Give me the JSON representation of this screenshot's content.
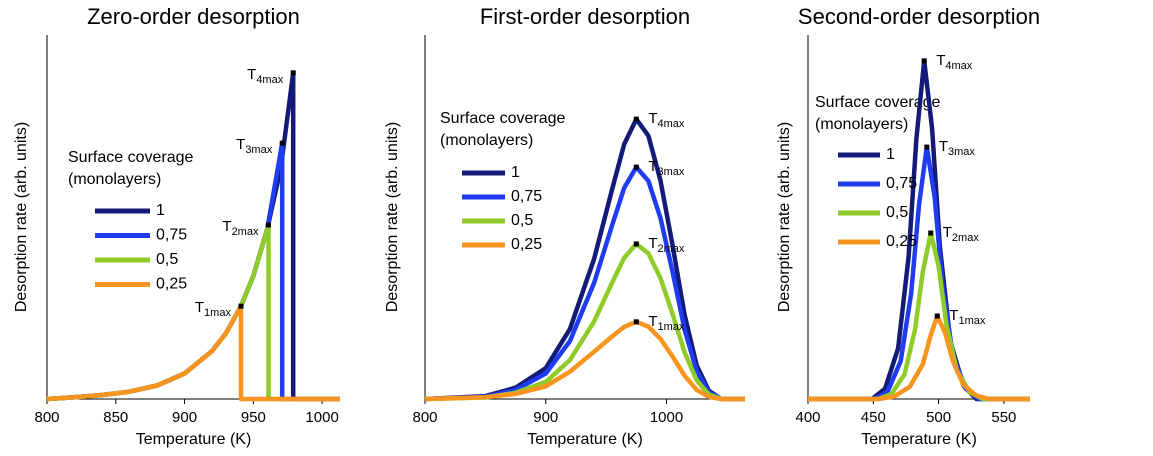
{
  "chart_data": [
    {
      "type": "line",
      "title": "Zero-order desorption",
      "x_label": "Temperature (K)",
      "y_label": "Desorption rate (arb. units)",
      "xlim": [
        800,
        1013
      ],
      "ylim": [
        0,
        10
      ],
      "xticks": [
        800,
        850,
        900,
        950,
        1000
      ],
      "legend_title": [
        "Surface coverage",
        "(monolayers)"
      ],
      "series": [
        {
          "name": "1",
          "color": "#141a78",
          "peak_label": {
            "text": "T",
            "sub": "4max"
          },
          "x": [
            800,
            820,
            840,
            860,
            880,
            900,
            920,
            930,
            941,
            950,
            960,
            970,
            979,
            979,
            1013
          ],
          "values": [
            0,
            0.05,
            0.11,
            0.2,
            0.37,
            0.7,
            1.32,
            1.8,
            2.55,
            3.38,
            4.65,
            6.35,
            8.96,
            0,
            0
          ]
        },
        {
          "name": "0,75",
          "color": "#1f3cf0",
          "peak_label": {
            "text": "T",
            "sub": "3max"
          },
          "x": [
            800,
            820,
            840,
            860,
            880,
            900,
            920,
            930,
            941,
            950,
            960,
            971,
            971,
            1013
          ],
          "values": [
            0,
            0.05,
            0.11,
            0.2,
            0.37,
            0.7,
            1.32,
            1.8,
            2.55,
            3.38,
            4.65,
            7.03,
            0,
            0
          ]
        },
        {
          "name": "0,5",
          "color": "#8fcc2a",
          "peak_label": {
            "text": "T",
            "sub": "2max"
          },
          "x": [
            800,
            820,
            840,
            860,
            880,
            900,
            920,
            930,
            941,
            950,
            961,
            961,
            1013
          ],
          "values": [
            0,
            0.05,
            0.11,
            0.2,
            0.37,
            0.7,
            1.32,
            1.8,
            2.55,
            3.38,
            4.78,
            0,
            0
          ]
        },
        {
          "name": "0,25",
          "color": "#f7941d",
          "peak_label": {
            "text": "T",
            "sub": "1max"
          },
          "x": [
            800,
            820,
            840,
            860,
            880,
            900,
            920,
            930,
            941,
            941,
            1013
          ],
          "values": [
            0,
            0.05,
            0.11,
            0.2,
            0.37,
            0.7,
            1.32,
            1.8,
            2.55,
            0,
            0
          ]
        }
      ]
    },
    {
      "type": "line",
      "title": "First-order desorption",
      "x_label": "Temperature (K)",
      "y_label": "Desorption rate (arb. units)",
      "xlim": [
        800,
        1065
      ],
      "ylim": [
        0,
        10
      ],
      "xticks": [
        800,
        900,
        1000
      ],
      "legend_title": [
        "Surface coverage",
        "(monolayers)"
      ],
      "series": [
        {
          "name": "1",
          "color": "#141a78",
          "peak_label": {
            "text": "T",
            "sub": "4max"
          },
          "x": [
            800,
            850,
            875,
            900,
            920,
            940,
            955,
            965,
            975,
            985,
            995,
            1005,
            1015,
            1025,
            1035,
            1045,
            1065
          ],
          "values": [
            0,
            0.08,
            0.31,
            0.85,
            1.92,
            3.85,
            5.77,
            7.0,
            7.69,
            7.23,
            6.0,
            4.23,
            2.31,
            0.92,
            0.23,
            0,
            0
          ]
        },
        {
          "name": "0,75",
          "color": "#1f3cf0",
          "peak_label": {
            "text": "T",
            "sub": "3max"
          },
          "x": [
            800,
            850,
            875,
            900,
            920,
            940,
            955,
            965,
            975,
            985,
            995,
            1005,
            1015,
            1025,
            1035,
            1045,
            1065
          ],
          "values": [
            0,
            0.06,
            0.25,
            0.7,
            1.59,
            3.19,
            4.78,
            5.8,
            6.37,
            5.99,
            4.97,
            3.5,
            1.91,
            0.76,
            0.19,
            0,
            0
          ]
        },
        {
          "name": "0,5",
          "color": "#8fcc2a",
          "peak_label": {
            "text": "T",
            "sub": "2max"
          },
          "x": [
            800,
            850,
            875,
            900,
            920,
            940,
            955,
            965,
            975,
            985,
            995,
            1005,
            1015,
            1025,
            1035,
            1045,
            1065
          ],
          "values": [
            0,
            0.04,
            0.17,
            0.47,
            1.07,
            2.13,
            3.2,
            3.88,
            4.26,
            4.0,
            3.32,
            2.34,
            1.28,
            0.51,
            0.13,
            0,
            0
          ]
        },
        {
          "name": "0,25",
          "color": "#f7941d",
          "peak_label": {
            "text": "T",
            "sub": "1max"
          },
          "x": [
            800,
            850,
            875,
            900,
            920,
            940,
            955,
            965,
            975,
            985,
            995,
            1005,
            1015,
            1025,
            1035,
            1045,
            1065
          ],
          "values": [
            0,
            0.05,
            0.14,
            0.35,
            0.75,
            1.3,
            1.72,
            1.98,
            2.12,
            1.99,
            1.65,
            1.17,
            0.64,
            0.25,
            0.06,
            0,
            0
          ]
        }
      ]
    },
    {
      "type": "line",
      "title": "Second-order desorption",
      "x_label": "Temperature (K)",
      "y_label": "Desorption rate (arb. units)",
      "xlim": [
        400,
        570
      ],
      "ylim": [
        0,
        10
      ],
      "xticks": [
        400,
        450,
        500,
        550
      ],
      "legend_title": [
        "Surface coverage",
        "(monolayers)"
      ],
      "series": [
        {
          "name": "1",
          "color": "#141a78",
          "peak_label": {
            "text": "T",
            "sub": "4max"
          },
          "x": [
            400,
            449,
            459,
            469,
            477,
            483,
            489,
            495,
            501,
            509,
            519,
            529,
            570
          ],
          "values": [
            0,
            0,
            0.28,
            1.39,
            3.9,
            7.15,
            9.29,
            7.43,
            4.18,
            1.58,
            0.37,
            0,
            0
          ]
        },
        {
          "name": "0,75",
          "color": "#1f3cf0",
          "peak_label": {
            "text": "T",
            "sub": "3max"
          },
          "x": [
            400,
            451,
            461,
            471,
            479,
            485,
            491,
            497,
            503,
            511,
            521,
            531,
            570
          ],
          "values": [
            0,
            0,
            0.21,
            1.04,
            2.91,
            5.33,
            6.92,
            5.54,
            3.11,
            1.18,
            0.28,
            0,
            0
          ]
        },
        {
          "name": "0,5",
          "color": "#8fcc2a",
          "peak_label": {
            "text": "T",
            "sub": "2max"
          },
          "x": [
            400,
            454,
            464,
            474,
            482,
            488,
            494,
            500,
            506,
            514,
            524,
            534,
            570
          ],
          "values": [
            0,
            0,
            0.14,
            0.68,
            1.92,
            3.51,
            4.56,
            3.65,
            2.05,
            0.78,
            0.18,
            0,
            0
          ]
        },
        {
          "name": "0,25",
          "color": "#f7941d",
          "peak_label": {
            "text": "T",
            "sub": "1max"
          },
          "x": [
            400,
            454,
            466,
            478,
            488,
            494,
            499,
            505,
            511,
            519,
            529,
            539,
            570
          ],
          "values": [
            0,
            0,
            0.07,
            0.34,
            0.96,
            1.76,
            2.28,
            1.82,
            1.03,
            0.39,
            0.09,
            0,
            0
          ]
        }
      ]
    }
  ]
}
